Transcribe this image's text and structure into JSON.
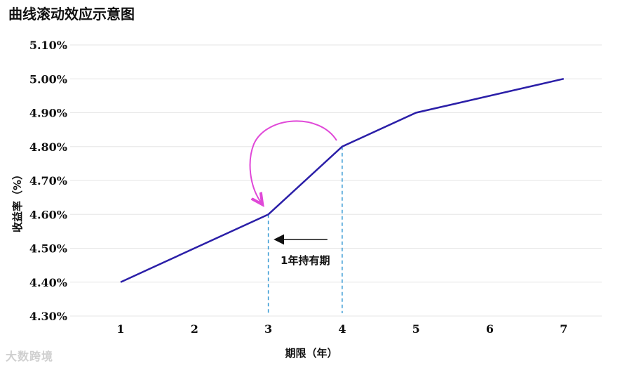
{
  "chart_data": {
    "type": "line",
    "title": "曲线滚动效应示意图",
    "xlabel": "期限（年）",
    "ylabel": "收益率（%）",
    "categories": [
      1,
      2,
      3,
      4,
      5,
      6,
      7
    ],
    "x": [
      1,
      3,
      4,
      5,
      7
    ],
    "y": [
      4.4,
      4.6,
      4.8,
      4.9,
      5.0
    ],
    "ylim": [
      4.3,
      5.1
    ],
    "yticks": [
      "4.30%",
      "4.40%",
      "4.50%",
      "4.60%",
      "4.70%",
      "4.80%",
      "4.90%",
      "5.00%",
      "5.10%"
    ],
    "grid": true,
    "line_color": "#2b1fa8",
    "annotations": {
      "holding_period_label": "1年持有期",
      "guide_lines_x": [
        3,
        4
      ],
      "guide_color": "#3a9bd5",
      "roll_arrow_color": "#e048d8",
      "arrow_from_x": 3.8,
      "arrow_to_x": 3.1
    }
  },
  "watermark": "大数跨境"
}
